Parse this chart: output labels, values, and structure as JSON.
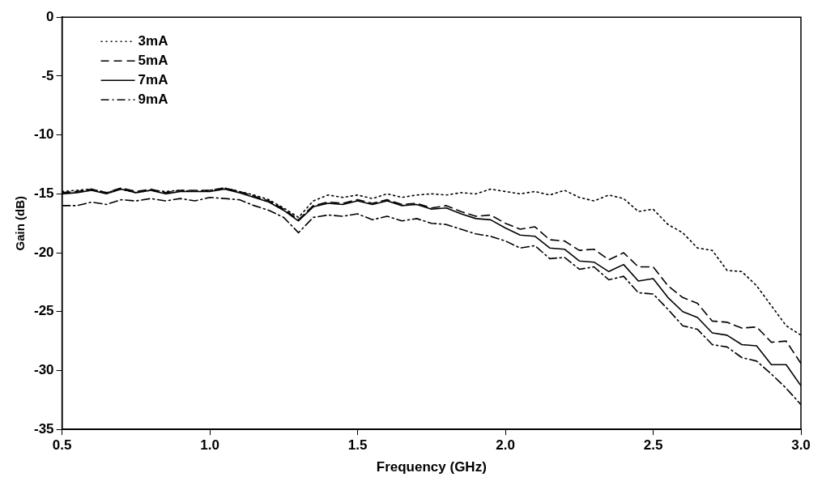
{
  "chart_data": {
    "type": "line",
    "xlabel": "Frequency (GHz)",
    "ylabel": "Gain (dB)",
    "x": [
      0.5,
      0.55,
      0.6,
      0.65,
      0.7,
      0.75,
      0.8,
      0.85,
      0.9,
      0.95,
      1.0,
      1.05,
      1.1,
      1.15,
      1.2,
      1.25,
      1.3,
      1.35,
      1.4,
      1.45,
      1.5,
      1.55,
      1.6,
      1.65,
      1.7,
      1.75,
      1.8,
      1.85,
      1.9,
      1.95,
      2.0,
      2.05,
      2.1,
      2.15,
      2.2,
      2.25,
      2.3,
      2.35,
      2.4,
      2.45,
      2.5,
      2.55,
      2.6,
      2.65,
      2.7,
      2.75,
      2.8,
      2.85,
      2.9,
      2.95,
      3.0
    ],
    "series": [
      {
        "name": "3mA",
        "color": "#000000",
        "line_style": "dotted",
        "values": [
          -14.8,
          -14.7,
          -14.6,
          -14.9,
          -14.6,
          -14.9,
          -14.7,
          -14.8,
          -14.7,
          -14.8,
          -14.7,
          -14.5,
          -14.8,
          -15.1,
          -15.5,
          -16.2,
          -17.0,
          -15.6,
          -15.1,
          -15.3,
          -15.1,
          -15.4,
          -15.0,
          -15.3,
          -15.1,
          -15.0,
          -15.1,
          -14.9,
          -15.0,
          -14.6,
          -14.8,
          -15.0,
          -14.8,
          -15.1,
          -14.7,
          -15.3,
          -15.6,
          -15.1,
          -15.4,
          -16.5,
          -16.3,
          -17.6,
          -18.3,
          -19.6,
          -19.8,
          -21.5,
          -21.6,
          -22.8,
          -24.5,
          -26.2,
          -27.0
        ]
      },
      {
        "name": "5mA",
        "color": "#000000",
        "line_style": "dashed",
        "values": [
          -14.9,
          -14.8,
          -14.6,
          -14.9,
          -14.5,
          -14.8,
          -14.6,
          -14.9,
          -14.7,
          -14.7,
          -14.7,
          -14.5,
          -14.8,
          -15.2,
          -15.6,
          -16.3,
          -17.2,
          -16.0,
          -15.7,
          -15.8,
          -15.5,
          -15.8,
          -15.5,
          -15.9,
          -15.8,
          -16.2,
          -16.0,
          -16.5,
          -16.9,
          -16.8,
          -17.5,
          -18.0,
          -17.8,
          -18.9,
          -19.0,
          -19.8,
          -19.7,
          -20.6,
          -20.0,
          -21.2,
          -21.2,
          -22.8,
          -23.8,
          -24.3,
          -25.8,
          -25.9,
          -26.4,
          -26.3,
          -27.6,
          -27.5,
          -29.4
        ]
      },
      {
        "name": "7mA",
        "color": "#000000",
        "line_style": "solid",
        "values": [
          -15.0,
          -14.9,
          -14.7,
          -15.0,
          -14.6,
          -14.9,
          -14.7,
          -15.0,
          -14.8,
          -14.8,
          -14.8,
          -14.6,
          -14.9,
          -15.3,
          -15.7,
          -16.4,
          -17.3,
          -16.1,
          -15.8,
          -15.9,
          -15.6,
          -15.9,
          -15.6,
          -16.0,
          -15.9,
          -16.3,
          -16.2,
          -16.7,
          -17.1,
          -17.2,
          -17.9,
          -18.5,
          -18.6,
          -19.6,
          -19.7,
          -20.7,
          -20.8,
          -21.6,
          -21.0,
          -22.4,
          -22.2,
          -23.8,
          -25.0,
          -25.5,
          -26.8,
          -27.0,
          -27.8,
          -27.9,
          -29.5,
          -29.5,
          -31.3
        ]
      },
      {
        "name": "9mA",
        "color": "#000000",
        "line_style": "dashdot",
        "values": [
          -16.0,
          -16.0,
          -15.7,
          -15.9,
          -15.5,
          -15.6,
          -15.4,
          -15.6,
          -15.4,
          -15.6,
          -15.3,
          -15.4,
          -15.5,
          -16.0,
          -16.4,
          -17.0,
          -18.3,
          -17.0,
          -16.8,
          -16.9,
          -16.7,
          -17.2,
          -16.9,
          -17.3,
          -17.1,
          -17.5,
          -17.6,
          -18.0,
          -18.4,
          -18.6,
          -19.0,
          -19.6,
          -19.4,
          -20.5,
          -20.4,
          -21.4,
          -21.2,
          -22.3,
          -22.0,
          -23.4,
          -23.5,
          -24.8,
          -26.2,
          -26.5,
          -27.8,
          -28.0,
          -28.9,
          -29.2,
          -30.3,
          -31.5,
          -32.9
        ]
      }
    ],
    "xlim": [
      0.5,
      3.0
    ],
    "xticks": [
      {
        "value": 0.5,
        "label": "0.5"
      },
      {
        "value": 1,
        "label": "1.0"
      },
      {
        "value": 1.5,
        "label": "1.5"
      },
      {
        "value": 2,
        "label": "2.0"
      },
      {
        "value": 2.5,
        "label": "2.5"
      },
      {
        "value": 3,
        "label": "3.0"
      }
    ],
    "ylim": [
      -35,
      0
    ],
    "yticks": [
      -35,
      -30,
      -25,
      -20,
      -15,
      -10,
      -5,
      0
    ],
    "grid": false,
    "legend": "top left",
    "marker": "none"
  }
}
